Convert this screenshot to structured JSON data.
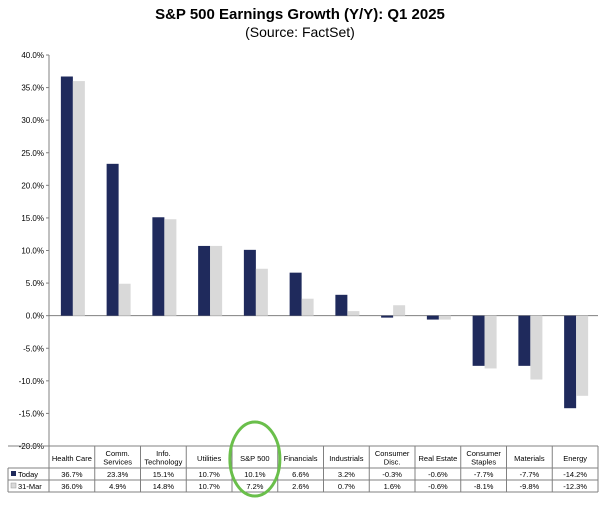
{
  "chart_data": {
    "type": "bar",
    "title": "S&P 500 Earnings Growth (Y/Y): Q1 2025",
    "subtitle": "(Source: FactSet)",
    "categories": [
      [
        "Health Care"
      ],
      [
        "Comm.",
        "Services"
      ],
      [
        "Info.",
        "Technology"
      ],
      [
        "Utilities"
      ],
      [
        "S&P 500"
      ],
      [
        "Financials"
      ],
      [
        "Industrials"
      ],
      [
        "Consumer",
        "Disc."
      ],
      [
        "Real Estate"
      ],
      [
        "Consumer",
        "Staples"
      ],
      [
        "Materials"
      ],
      [
        "Energy"
      ]
    ],
    "series": [
      {
        "name": "Today",
        "color": "#1f2a5c",
        "values": [
          36.7,
          23.3,
          15.1,
          10.7,
          10.1,
          6.6,
          3.2,
          -0.3,
          -0.6,
          -7.7,
          -7.7,
          -14.2
        ],
        "labels": [
          "36.7%",
          "23.3%",
          "15.1%",
          "10.7%",
          "10.1%",
          "6.6%",
          "3.2%",
          "-0.3%",
          "-0.6%",
          "-7.7%",
          "-7.7%",
          "-14.2%"
        ]
      },
      {
        "name": "31-Mar",
        "color": "#d9d9d9",
        "values": [
          36.0,
          4.9,
          14.8,
          10.7,
          7.2,
          2.6,
          0.7,
          1.6,
          -0.6,
          -8.1,
          -9.8,
          -12.3
        ],
        "labels": [
          "36.0%",
          "4.9%",
          "14.8%",
          "10.7%",
          "7.2%",
          "2.6%",
          "0.7%",
          "1.6%",
          "-0.6%",
          "-8.1%",
          "-9.8%",
          "-12.3%"
        ]
      }
    ],
    "yticks": [
      "40.0%",
      "35.0%",
      "30.0%",
      "25.0%",
      "20.0%",
      "15.0%",
      "10.0%",
      "5.0%",
      "0.0%",
      "-5.0%",
      "-10.0%",
      "-15.0%",
      "-20.0%"
    ],
    "ylim": [
      -20,
      40
    ],
    "highlight_category": "S&P 500",
    "highlight_color": "#6abf4b",
    "grid": false
  }
}
